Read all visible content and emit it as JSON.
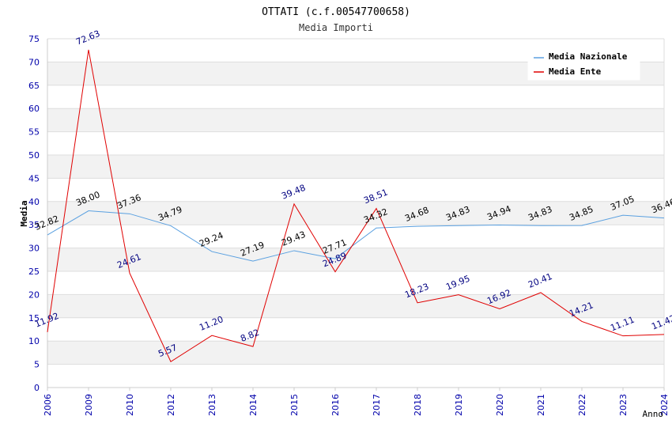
{
  "chart_data": {
    "type": "line",
    "title": "OTTATI (c.f.00547700658)",
    "subtitle": "Media Importi",
    "xlabel": "Anno",
    "ylabel": "Media",
    "ylim": [
      0,
      75
    ],
    "yticks": [
      "0",
      "5",
      "10",
      "15",
      "20",
      "25",
      "30",
      "35",
      "40",
      "45",
      "50",
      "55",
      "60",
      "65",
      "70",
      "75"
    ],
    "categories": [
      "2006",
      "2009",
      "2010",
      "2012",
      "2013",
      "2014",
      "2015",
      "2016",
      "2017",
      "2018",
      "2019",
      "2020",
      "2021",
      "2022",
      "2023",
      "2024"
    ],
    "legend_position": "top-right",
    "grid": true,
    "series": [
      {
        "name": "Media Nazionale",
        "color": "#5aa0e0",
        "label_color": "#000000",
        "values": [
          32.82,
          38.0,
          37.36,
          34.79,
          29.24,
          27.19,
          29.43,
          27.71,
          34.32,
          34.68,
          34.83,
          34.94,
          34.83,
          34.85,
          37.05,
          36.46
        ],
        "labels": [
          "32.82",
          "38.00",
          "37.36",
          "34.79",
          "29.24",
          "27.19",
          "29.43",
          "27.71",
          "34.32",
          "34.68",
          "34.83",
          "34.94",
          "34.83",
          "34.85",
          "37.05",
          "36.46"
        ]
      },
      {
        "name": "Media Ente",
        "color": "#e00000",
        "label_color": "#000080",
        "values": [
          11.92,
          72.63,
          24.61,
          5.57,
          11.2,
          8.82,
          39.48,
          24.89,
          38.51,
          18.23,
          19.95,
          16.92,
          20.41,
          14.21,
          11.11,
          11.42
        ],
        "labels": [
          "11.92",
          "72.63",
          "24.61",
          "5.57",
          "11.20",
          "8.82",
          "39.48",
          "24.89",
          "38.51",
          "18.23",
          "19.95",
          "16.92",
          "20.41",
          "14.21",
          "11.11",
          "11.42"
        ]
      }
    ]
  }
}
